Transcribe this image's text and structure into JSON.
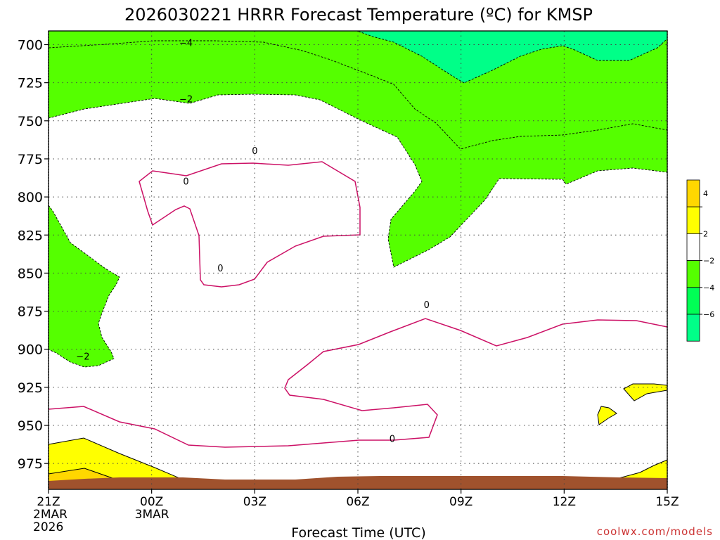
{
  "chart_data": {
    "type": "contour",
    "title": "2026030221 HRRR Forecast Temperature (ºC) for KMSP",
    "xlabel": "Forecast Time (UTC)",
    "ylabel": "",
    "credit": "coolwx.com/models",
    "x_ticks": [
      {
        "hour": 0,
        "lines": [
          "21Z",
          "2MAR",
          "2026"
        ]
      },
      {
        "hour": 3,
        "lines": [
          "00Z",
          "3MAR"
        ]
      },
      {
        "hour": 6,
        "lines": [
          "03Z"
        ]
      },
      {
        "hour": 9,
        "lines": [
          "06Z"
        ]
      },
      {
        "hour": 12,
        "lines": [
          "09Z"
        ]
      },
      {
        "hour": 15,
        "lines": [
          "12Z"
        ]
      },
      {
        "hour": 18,
        "lines": [
          "15Z"
        ]
      }
    ],
    "xlim": [
      0,
      18
    ],
    "y_ticks": [
      700,
      725,
      750,
      775,
      800,
      825,
      850,
      875,
      900,
      925,
      950,
      975
    ],
    "ylim": [
      691,
      992
    ],
    "y_scale": "pressure (hPa), increasing downward",
    "contour_labels": [
      {
        "text": "-4",
        "hour": 4.0,
        "pressure": 699
      },
      {
        "text": "-2",
        "hour": 4.0,
        "pressure": 736
      },
      {
        "text": "0",
        "hour": 6.0,
        "pressure": 770
      },
      {
        "text": "0",
        "hour": 4.0,
        "pressure": 790
      },
      {
        "text": "0",
        "hour": 5.0,
        "pressure": 847
      },
      {
        "text": "-2",
        "hour": 1.0,
        "pressure": 905
      },
      {
        "text": "0",
        "hour": 11.0,
        "pressure": 871
      },
      {
        "text": "0",
        "hour": 10.0,
        "pressure": 959
      }
    ],
    "legend": {
      "labels": [
        "4",
        "2",
        "−2",
        "−4",
        "−6"
      ],
      "bands": [
        {
          "range": "above 4",
          "color": "#ffd700"
        },
        {
          "range": "2 to 4",
          "color": "#ffff00"
        },
        {
          "range": "-2 to 2",
          "color": "#ffffff"
        },
        {
          "range": "-4 to -2",
          "color": "#55ff00"
        },
        {
          "range": "-6 to -4",
          "color": "#00ff55"
        },
        {
          "range": "below -6",
          "color": "#00ff88"
        }
      ]
    },
    "colors": {
      "cold_minus6": "#00ff88",
      "cold_minus4": "#55ff00",
      "warm_2": "#ffff00",
      "warm_4": "#ffd700",
      "freezing_line": "#cc1166",
      "ground": "#a0522d"
    },
    "grid": true
  }
}
